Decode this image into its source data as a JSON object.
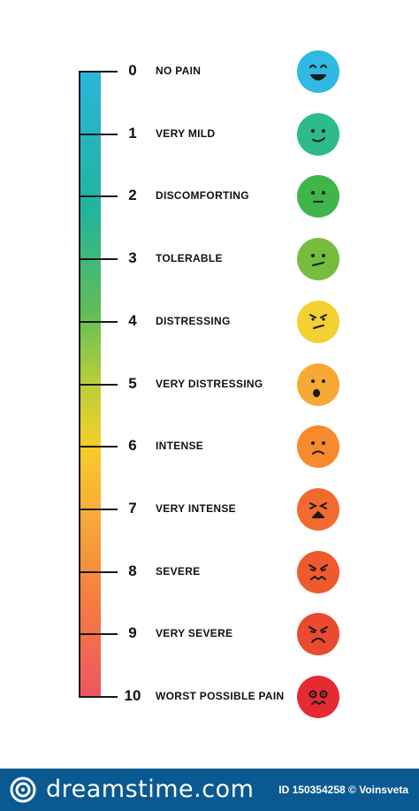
{
  "scale": {
    "levels": [
      {
        "num": "0",
        "label": "NO PAIN",
        "face": "smiling-face-icon",
        "color": "#2fb9e3"
      },
      {
        "num": "1",
        "label": "VERY MILD",
        "face": "mild-smile-face-icon",
        "color": "#2dba8c"
      },
      {
        "num": "2",
        "label": "DISCOMFORTING",
        "face": "neutral-face-icon",
        "color": "#3fb54c"
      },
      {
        "num": "3",
        "label": "TOLERABLE",
        "face": "slight-frown-face-icon",
        "color": "#76bd3d"
      },
      {
        "num": "4",
        "label": "DISTRESSING",
        "face": "annoyed-face-icon",
        "color": "#f2d130"
      },
      {
        "num": "5",
        "label": "VERY DISTRESSING",
        "face": "worried-face-icon",
        "color": "#f8a834"
      },
      {
        "num": "6",
        "label": "INTENSE",
        "face": "sad-face-icon",
        "color": "#f68a2d"
      },
      {
        "num": "7",
        "label": "VERY INTENSE",
        "face": "distressed-face-icon",
        "color": "#f26a2e"
      },
      {
        "num": "8",
        "label": "SEVERE",
        "face": "grimacing-face-icon",
        "color": "#ee5a2e"
      },
      {
        "num": "9",
        "label": "VERY SEVERE",
        "face": "angry-face-icon",
        "color": "#ea4a2f"
      },
      {
        "num": "10",
        "label": "WORST POSSIBLE PAIN",
        "face": "agonized-face-icon",
        "color": "#e62a32"
      }
    ]
  },
  "footer": {
    "brand": "dreamstime.com",
    "id_text": "ID 150354258 © Voinsveta"
  }
}
